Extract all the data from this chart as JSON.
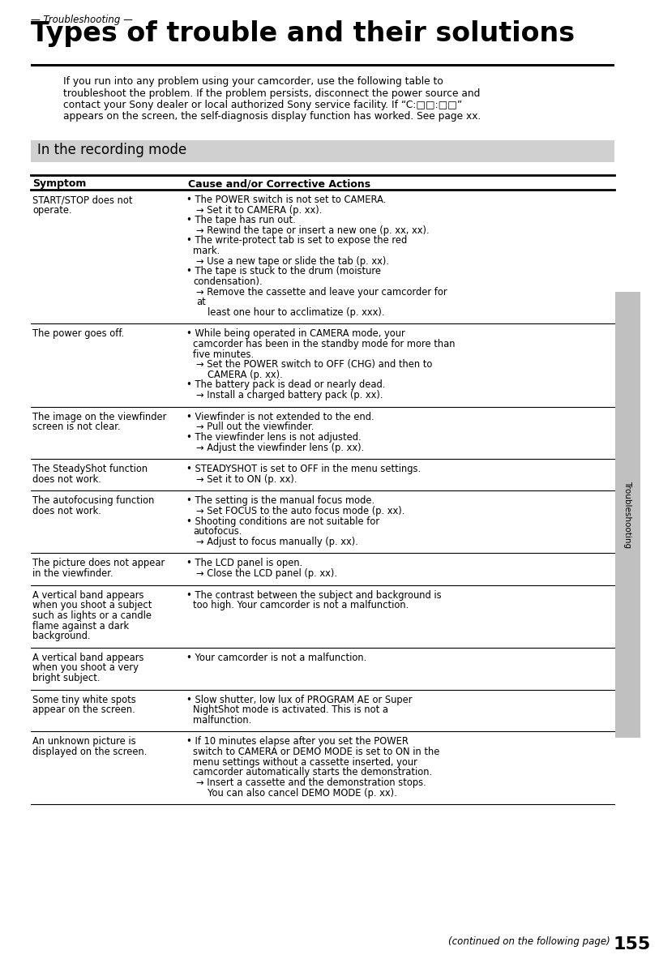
{
  "page_number": "155",
  "section_label": "— Troubleshooting —",
  "title": "Types of trouble and their solutions",
  "intro_lines": [
    "If you run into any problem using your camcorder, use the following table to",
    "troubleshoot the problem. If the problem persists, disconnect the power source and",
    "contact your Sony dealer or local authorized Sony service facility. If “C:□□:□□”",
    "appears on the screen, the self-diagnosis display function has worked. See page xx."
  ],
  "recording_mode_label": "In the recording mode",
  "col1_header": "Symptom",
  "col2_header": "Cause and/or Corrective Actions",
  "sidebar_text": "Troubleshooting",
  "rows": [
    {
      "symptom": "START/STOP does not operate.",
      "causes": [
        {
          "bullet": "The POWER switch is not set to CAMERA.",
          "action": "→ Set it to CAMERA (p. xx)."
        },
        {
          "bullet": "The tape has run out.",
          "action": "→ Rewind the tape or insert a new one (p. xx, xx)."
        },
        {
          "bullet": "The write-protect tab is set to expose the red mark.",
          "action": "→ Use a new tape or slide the tab (p. xx)."
        },
        {
          "bullet": "The tape is stuck to the drum (moisture condensation).",
          "action": "→ Remove the cassette and leave your camcorder for at",
          "action2": "    least one hour to acclimatize (p. xxx)."
        }
      ]
    },
    {
      "symptom": "The power goes off.",
      "causes": [
        {
          "bullet": "While being operated in CAMERA mode, your camcorder has been in the standby mode for more than five minutes.",
          "action": "→ Set the POWER switch to OFF (CHG) and then to",
          "action2": "    CAMERA (p. xx)."
        },
        {
          "bullet": "The battery pack is dead or nearly dead.",
          "action": "→ Install a charged battery pack (p. xx)."
        }
      ]
    },
    {
      "symptom": "The image on the viewfinder screen is not clear.",
      "causes": [
        {
          "bullet": "Viewfinder is not extended to the end.",
          "action": "→ Pull out the viewfinder."
        },
        {
          "bullet": "The viewfinder lens is not adjusted.",
          "action": "→ Adjust the viewfinder lens (p. xx)."
        }
      ]
    },
    {
      "symptom": "The SteadyShot function does not work.",
      "causes": [
        {
          "bullet": "STEADYSHOT is set to OFF in the menu settings.",
          "action": "→ Set it to ON (p. xx)."
        }
      ]
    },
    {
      "symptom": "The autofocusing function does not work.",
      "causes": [
        {
          "bullet": "The setting is the manual focus mode.",
          "action": "→ Set FOCUS to the auto focus mode (p. xx)."
        },
        {
          "bullet": "Shooting conditions are not suitable for autofocus.",
          "action": "→ Adjust to focus manually (p. xx)."
        }
      ]
    },
    {
      "symptom": "The picture does not appear in the viewfinder.",
      "causes": [
        {
          "bullet": "The LCD panel is open.",
          "action": "→ Close the LCD panel (p. xx)."
        }
      ]
    },
    {
      "symptom": "A vertical band appears when you shoot a subject such as lights or a candle flame against a dark background.",
      "causes": [
        {
          "bullet": "The contrast between the subject and background is too high. Your camcorder is not a malfunction.",
          "action": ""
        }
      ]
    },
    {
      "symptom": "A vertical band appears when you shoot a very bright subject.",
      "causes": [
        {
          "bullet": "Your camcorder is not a malfunction.",
          "action": ""
        }
      ]
    },
    {
      "symptom": "Some tiny white spots appear on the screen.",
      "causes": [
        {
          "bullet": "Slow shutter, low lux of PROGRAM AE or Super NightShot mode is activated. This is not a malfunction.",
          "action": ""
        }
      ]
    },
    {
      "symptom": "An unknown picture is displayed on the screen.",
      "causes": [
        {
          "bullet": "If 10 minutes elapse after you set the POWER switch to CAMERA or DEMO MODE is set to ON in the menu settings without a cassette inserted, your camcorder automatically starts the demonstration.",
          "action": "→ Insert a cassette and the demonstration stops.",
          "action2": "    You can also cancel DEMO MODE (p. xx)."
        }
      ]
    }
  ],
  "footer_text": "(continued on the following page)",
  "bg_color": "#ffffff",
  "banner_color": "#d0d0d0",
  "sidebar_color": "#c0c0c0",
  "table_line_color": "#000000"
}
